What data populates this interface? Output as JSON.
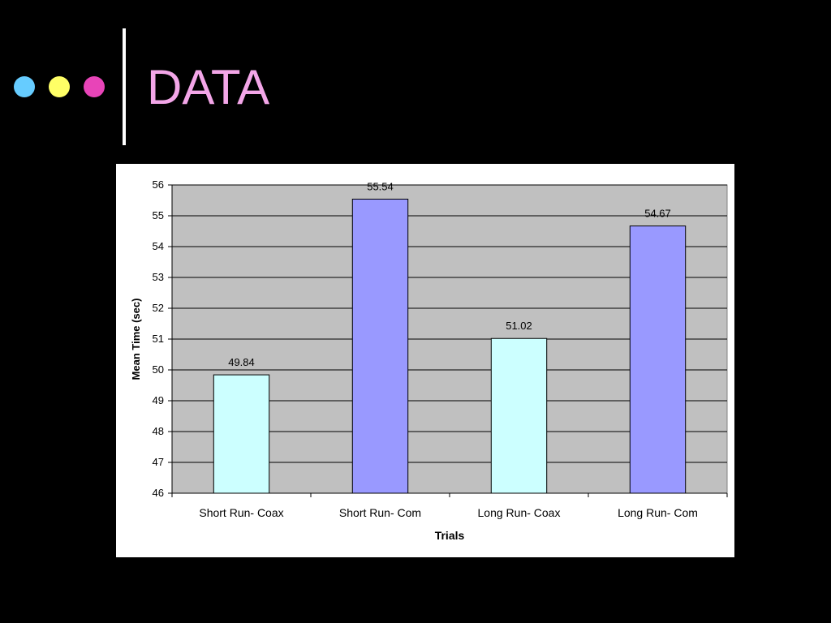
{
  "slide": {
    "title": "DATA",
    "dots": [
      {
        "name": "blue-dot",
        "color": "#66ccff"
      },
      {
        "name": "yellow-dot",
        "color": "#ffff66"
      },
      {
        "name": "pink-dot",
        "color": "#e844b8"
      }
    ]
  },
  "chart_data": {
    "type": "bar",
    "title": "",
    "xlabel": "Trials",
    "ylabel": "Mean Time (sec)",
    "categories": [
      "Short Run- Coax",
      "Short Run- Com",
      "Long Run- Coax",
      "Long Run- Com"
    ],
    "values": [
      49.84,
      55.54,
      51.02,
      54.67
    ],
    "value_labels": [
      "49.84",
      "55.54",
      "51.02",
      "54.67"
    ],
    "bar_colors": [
      "#ccffff",
      "#9999ff",
      "#ccffff",
      "#9999ff"
    ],
    "plot_background": "#c0c0c0",
    "ylim": [
      46,
      56
    ],
    "yticks": [
      46,
      47,
      48,
      49,
      50,
      51,
      52,
      53,
      54,
      55,
      56
    ],
    "grid": true,
    "legend": "none"
  }
}
